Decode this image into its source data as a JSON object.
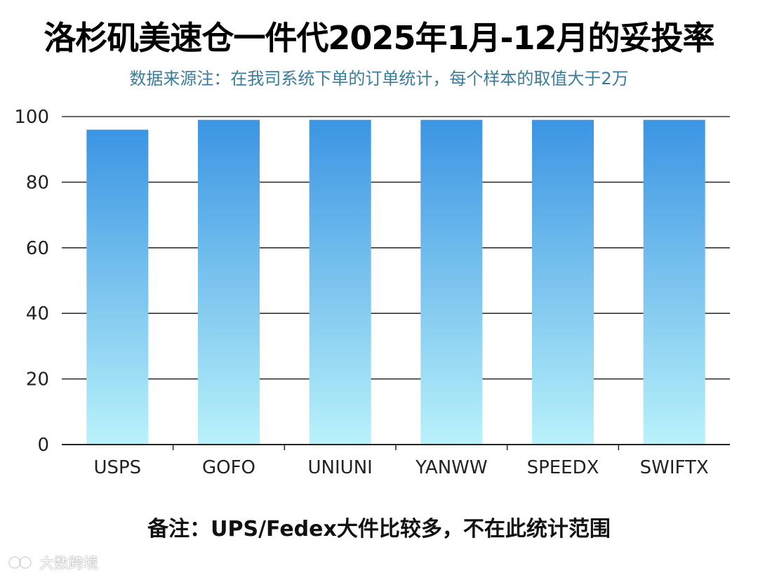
{
  "title": "洛杉矶美速仓一件代2025年1月-12月的妥投率",
  "subtitle": "数据来源注：在我司系统下单的订单统计，每个样本的取值大于2万",
  "note": "备注：UPS/Fedex大件比较多，不在此统计范围",
  "watermark": {
    "text": "大数跨境",
    "icon": "brand-logo-icon"
  },
  "colors": {
    "bar_top": "#3b95e3",
    "bar_bottom": "#b9f2fa",
    "grid": "#333333",
    "subtitle": "#3a7c9a"
  },
  "chart_data": {
    "type": "bar",
    "title": "洛杉矶美速仓一件代2025年1月-12月的妥投率",
    "subtitle": "数据来源注：在我司系统下单的订单统计，每个样本的取值大于2万",
    "categories": [
      "USPS",
      "GOFO",
      "UNIUNI",
      "YANWW",
      "SPEEDX",
      "SWIFTX"
    ],
    "values": [
      96,
      99,
      99,
      99,
      99,
      99
    ],
    "ylim": [
      0,
      100
    ],
    "yticks": [
      0,
      20,
      40,
      60,
      80,
      100
    ],
    "xlabel": "",
    "ylabel": "",
    "grid": true,
    "legend": "none"
  }
}
